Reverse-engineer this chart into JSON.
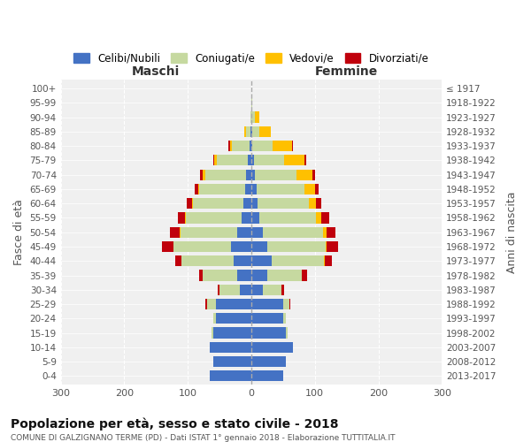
{
  "age_groups": [
    "0-4",
    "5-9",
    "10-14",
    "15-19",
    "20-24",
    "25-29",
    "30-34",
    "35-39",
    "40-44",
    "45-49",
    "50-54",
    "55-59",
    "60-64",
    "65-69",
    "70-74",
    "75-79",
    "80-84",
    "85-89",
    "90-94",
    "95-99",
    "100+"
  ],
  "birth_years": [
    "2013-2017",
    "2008-2012",
    "2003-2007",
    "1998-2002",
    "1993-1997",
    "1988-1992",
    "1983-1987",
    "1978-1982",
    "1973-1977",
    "1968-1972",
    "1963-1967",
    "1958-1962",
    "1953-1957",
    "1948-1952",
    "1943-1947",
    "1938-1942",
    "1933-1937",
    "1928-1932",
    "1923-1927",
    "1918-1922",
    "≤ 1917"
  ],
  "maschi": {
    "celibi": [
      65,
      60,
      65,
      60,
      55,
      55,
      18,
      22,
      28,
      32,
      22,
      15,
      12,
      10,
      8,
      6,
      3,
      1,
      0,
      0,
      0
    ],
    "coniugati": [
      0,
      0,
      0,
      2,
      5,
      15,
      32,
      55,
      82,
      90,
      90,
      88,
      80,
      72,
      65,
      48,
      28,
      8,
      2,
      0,
      0
    ],
    "vedovi": [
      0,
      0,
      0,
      0,
      0,
      0,
      0,
      0,
      0,
      1,
      1,
      2,
      2,
      2,
      3,
      4,
      3,
      2,
      0,
      0,
      0
    ],
    "divorziati": [
      0,
      0,
      0,
      0,
      0,
      2,
      3,
      5,
      10,
      18,
      15,
      10,
      8,
      5,
      5,
      2,
      2,
      0,
      0,
      0,
      0
    ]
  },
  "femmine": {
    "nubili": [
      50,
      55,
      65,
      55,
      50,
      50,
      18,
      25,
      32,
      25,
      18,
      12,
      10,
      8,
      6,
      4,
      2,
      1,
      0,
      0,
      0
    ],
    "coniugate": [
      0,
      0,
      0,
      2,
      5,
      10,
      30,
      55,
      82,
      92,
      95,
      90,
      80,
      75,
      65,
      48,
      32,
      12,
      5,
      1,
      0
    ],
    "vedove": [
      0,
      0,
      0,
      0,
      0,
      0,
      0,
      0,
      1,
      2,
      5,
      8,
      12,
      18,
      25,
      32,
      30,
      18,
      8,
      1,
      0
    ],
    "divorziate": [
      0,
      0,
      0,
      0,
      0,
      2,
      3,
      8,
      12,
      18,
      15,
      12,
      8,
      5,
      5,
      3,
      2,
      0,
      0,
      0,
      0
    ]
  },
  "color_celibi": "#4472c4",
  "color_coniugati": "#c6d9a0",
  "color_vedovi": "#ffc000",
  "color_divorziati": "#c0000c",
  "title": "Popolazione per età, sesso e stato civile - 2018",
  "subtitle": "COMUNE DI GALZIGNANO TERME (PD) - Dati ISTAT 1° gennaio 2018 - Elaborazione TUTTITALIA.IT",
  "xlabel_left": "Maschi",
  "xlabel_right": "Femmine",
  "ylabel_left": "Fasce di età",
  "ylabel_right": "Anni di nascita",
  "xlim": 300,
  "bg_color": "#ffffff",
  "grid_color": "#cccccc"
}
